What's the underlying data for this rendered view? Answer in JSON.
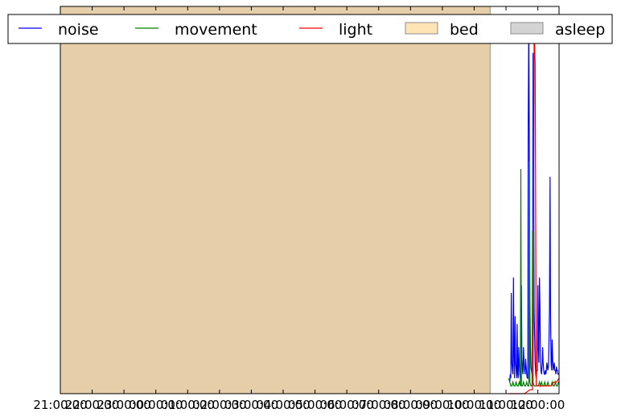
{
  "chart_data": {
    "type": "line",
    "title": "",
    "xlabel": "",
    "ylabel": "",
    "x_start": "21:00:00",
    "x_end": "12:40:00",
    "ylim": [
      0,
      100
    ],
    "grid": false,
    "legend_placement": "top",
    "x_tick_labels": [
      "21:00:00",
      "22:00:00",
      "23:00:00",
      "00:00:00",
      "01:00:00",
      "02:00:00",
      "03:00:00",
      "04:00:00",
      "05:00:00",
      "06:00:00",
      "07:00:00",
      "08:00:00",
      "09:00:00",
      "10:00:00",
      "11:00:00",
      "12:00:00"
    ],
    "colors": {
      "noise": "#0000ff",
      "movement": "#008000",
      "light": "#ff0000",
      "bed": "#ffe4b5",
      "bed_overlay": "#e5cea8",
      "asleep": "#d3d3d3"
    },
    "legend": [
      {
        "key": "noise",
        "label": "noise",
        "kind": "line"
      },
      {
        "key": "movement",
        "label": "movement",
        "kind": "line"
      },
      {
        "key": "light",
        "label": "light",
        "kind": "line"
      },
      {
        "key": "bed",
        "label": "bed",
        "kind": "patch"
      },
      {
        "key": "asleep",
        "label": "asleep",
        "kind": "patch"
      }
    ],
    "bed_periods": [
      {
        "start": "21:00:00",
        "end": "10:30:00"
      }
    ],
    "asleep_periods": [
      {
        "start": "21:00:00",
        "end": "10:30:00"
      }
    ],
    "series": [
      {
        "name": "noise",
        "key": "noise",
        "x": [
          "11:07:00",
          "11:08:00",
          "11:09:00",
          "11:10:00",
          "11:11:00",
          "11:12:00",
          "11:13:00",
          "11:14:00",
          "11:15:00",
          "11:16:00",
          "11:17:00",
          "11:18:00",
          "11:19:00",
          "11:20:00",
          "11:21:00",
          "11:22:00",
          "11:23:00",
          "11:24:00",
          "11:25:00",
          "11:26:00",
          "11:27:00",
          "11:28:00",
          "11:29:00",
          "11:30:00",
          "11:31:00",
          "11:32:00",
          "11:33:00",
          "11:34:00",
          "11:35:00",
          "11:36:00",
          "11:37:00",
          "11:38:00",
          "11:39:00",
          "11:40:00",
          "11:41:00",
          "11:42:00",
          "11:43:00",
          "11:44:00",
          "11:45:00",
          "11:46:00",
          "11:47:00",
          "11:48:00",
          "11:49:00",
          "11:50:00",
          "11:51:00",
          "11:52:00",
          "11:53:00",
          "11:54:00",
          "11:55:00",
          "11:56:00",
          "11:57:00",
          "11:58:00",
          "11:59:00",
          "12:00:00",
          "12:01:00",
          "12:02:00",
          "12:03:00",
          "12:04:00",
          "12:05:00",
          "12:06:00",
          "12:07:00",
          "12:08:00",
          "12:09:00",
          "12:10:00",
          "12:11:00",
          "12:12:00",
          "12:13:00",
          "12:14:00",
          "12:15:00",
          "12:16:00",
          "12:17:00",
          "12:18:00",
          "12:19:00",
          "12:20:00",
          "12:21:00",
          "12:22:00",
          "12:23:00",
          "12:24:00",
          "12:25:00",
          "12:26:00",
          "12:27:00",
          "12:28:00",
          "12:29:00",
          "12:30:00",
          "12:31:00",
          "12:32:00",
          "12:33:00",
          "12:34:00",
          "12:35:00",
          "12:36:00",
          "12:37:00",
          "12:38:00",
          "12:39:00",
          "12:40:00"
        ],
        "values": [
          3,
          5,
          4,
          26,
          8,
          6,
          5,
          30,
          10,
          4,
          20,
          8,
          6,
          4,
          18,
          5,
          4,
          12,
          8,
          5,
          4,
          3,
          28,
          9,
          6,
          5,
          12,
          8,
          6,
          5,
          9,
          7,
          5,
          4,
          4,
          70,
          98,
          60,
          24,
          12,
          7,
          6,
          5,
          5,
          88,
          60,
          22,
          14,
          8,
          5,
          4,
          6,
          6,
          28,
          12,
          8,
          30,
          22,
          8,
          6,
          5,
          7,
          12,
          8,
          6,
          5,
          5,
          6,
          5,
          6,
          8,
          7,
          6,
          7,
          14,
          22,
          56,
          20,
          8,
          6,
          14,
          9,
          6,
          7,
          8,
          6,
          6,
          5,
          7,
          6,
          6,
          5,
          5,
          5
        ]
      },
      {
        "name": "movement",
        "key": "movement",
        "x": [
          "11:05:00",
          "11:07:00",
          "11:09:00",
          "11:11:00",
          "11:13:00",
          "11:15:00",
          "11:17:00",
          "11:19:00",
          "11:21:00",
          "11:23:00",
          "11:25:00",
          "11:27:00",
          "11:28:00",
          "11:29:00",
          "11:31:00",
          "11:33:00",
          "11:35:00",
          "11:37:00",
          "11:39:00",
          "11:41:00",
          "11:43:00",
          "11:44:00",
          "11:45:00",
          "11:47:00",
          "11:49:00",
          "11:50:00",
          "11:51:00",
          "11:53:00",
          "11:55:00",
          "11:57:00",
          "11:59:00",
          "12:01:00",
          "12:03:00",
          "12:05:00",
          "12:07:00",
          "12:09:00",
          "12:11:00",
          "12:13:00",
          "12:15:00",
          "12:17:00",
          "12:19:00",
          "12:21:00",
          "12:23:00",
          "12:25:00",
          "12:27:00",
          "12:29:00",
          "12:31:00",
          "12:33:00",
          "12:35:00",
          "12:37:00",
          "12:39:00",
          "12:40:00"
        ],
        "values": [
          4,
          3,
          2,
          2,
          3,
          2,
          2,
          3,
          2,
          2,
          3,
          2,
          58,
          2,
          2,
          3,
          2,
          2,
          3,
          2,
          2,
          60,
          3,
          2,
          2,
          42,
          3,
          2,
          2,
          2,
          2,
          2,
          3,
          2,
          3,
          2,
          2,
          3,
          2,
          2,
          3,
          2,
          2,
          2,
          3,
          2,
          2,
          3,
          2,
          2,
          3,
          3
        ]
      },
      {
        "name": "light",
        "key": "light",
        "x": [
          "11:05:00",
          "11:15:00",
          "11:25:00",
          "11:35:00",
          "11:45:00",
          "11:50:00",
          "11:52:00",
          "11:53:00",
          "11:55:00",
          "11:57:00",
          "11:59:00",
          "12:05:00",
          "12:15:00",
          "12:25:00",
          "12:30:00",
          "12:35:00",
          "12:40:00"
        ],
        "values": [
          0,
          0,
          0,
          0,
          1,
          1,
          20,
          95,
          85,
          2,
          2,
          2,
          2,
          2,
          3,
          3,
          4
        ]
      }
    ]
  }
}
